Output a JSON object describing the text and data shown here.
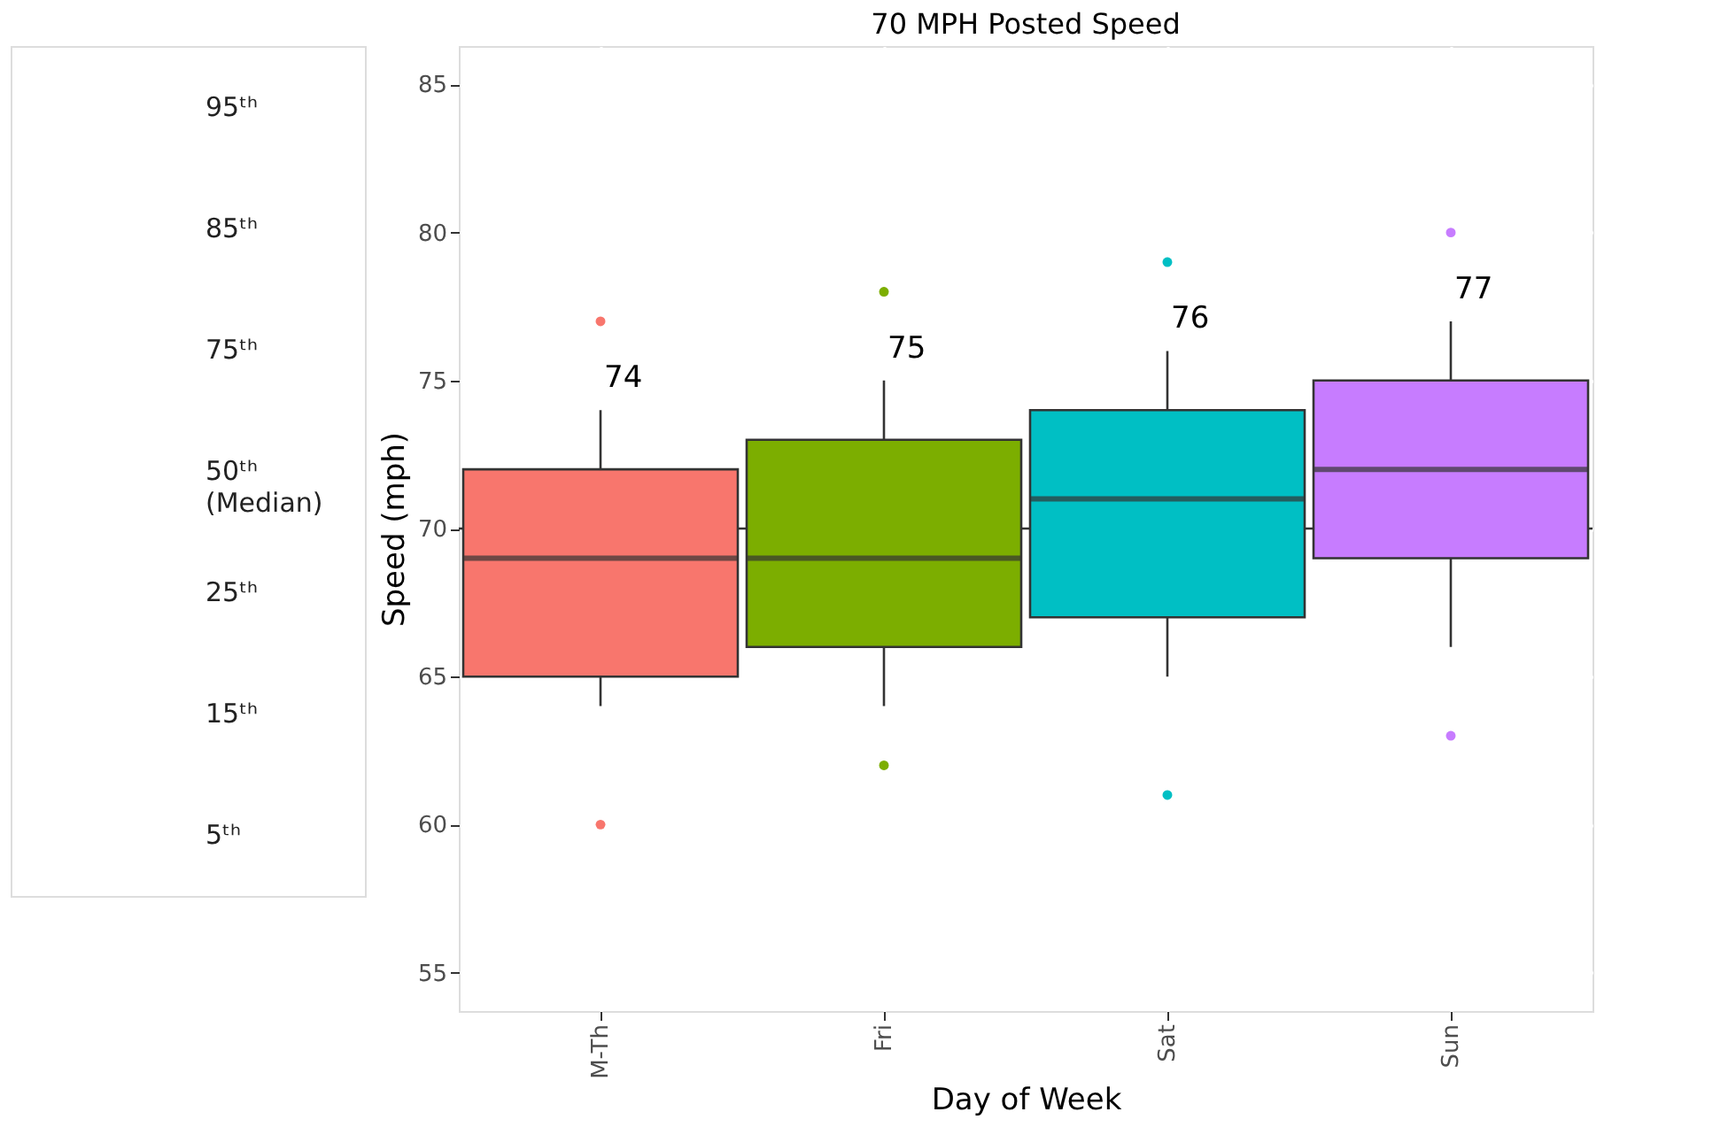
{
  "chart_data": [
    {
      "type": "other",
      "annotations": [
        "95ᵗʰ",
        "85ᵗʰ",
        "75ᵗʰ",
        "50ᵗʰ\n(Median)",
        "25ᵗʰ",
        "15ᵗʰ",
        "5ᵗʰ"
      ]
    },
    {
      "type": "box",
      "title": "70 MPH Posted Speed",
      "xlabel": "Day of Week",
      "ylabel": "Speed (mph)",
      "categories": [
        "M-Th",
        "Fri",
        "Sat",
        "Sun"
      ],
      "colors": [
        "#f8766d",
        "#7cae00",
        "#00bfc4",
        "#c77cff"
      ],
      "boxes": [
        {
          "low": 64,
          "q1": 65,
          "median": 69,
          "q3": 72,
          "high": 74,
          "outliers": [
            60,
            77
          ]
        },
        {
          "low": 64,
          "q1": 66,
          "median": 69,
          "q3": 73,
          "high": 75,
          "outliers": [
            62,
            78
          ]
        },
        {
          "low": 65,
          "q1": 67,
          "median": 71,
          "q3": 74,
          "high": 76,
          "outliers": [
            61,
            79
          ]
        },
        {
          "low": 66,
          "q1": 69,
          "median": 72,
          "q3": 75,
          "high": 77,
          "outliers": [
            63,
            80
          ]
        }
      ],
      "annotations": [
        {
          "text": "74",
          "x": "M-Th",
          "y": 74
        },
        {
          "text": "75",
          "x": "Fri",
          "y": 75
        },
        {
          "text": "76",
          "x": "Sat",
          "y": 76
        },
        {
          "text": "77",
          "x": "Sun",
          "y": 77
        }
      ],
      "ref_lines": [
        {
          "axis": "y",
          "value": 70
        }
      ],
      "ylim": [
        53.7,
        86.3
      ],
      "yticks": [
        55,
        60,
        65,
        70,
        75,
        80,
        85
      ],
      "grid": true
    }
  ]
}
